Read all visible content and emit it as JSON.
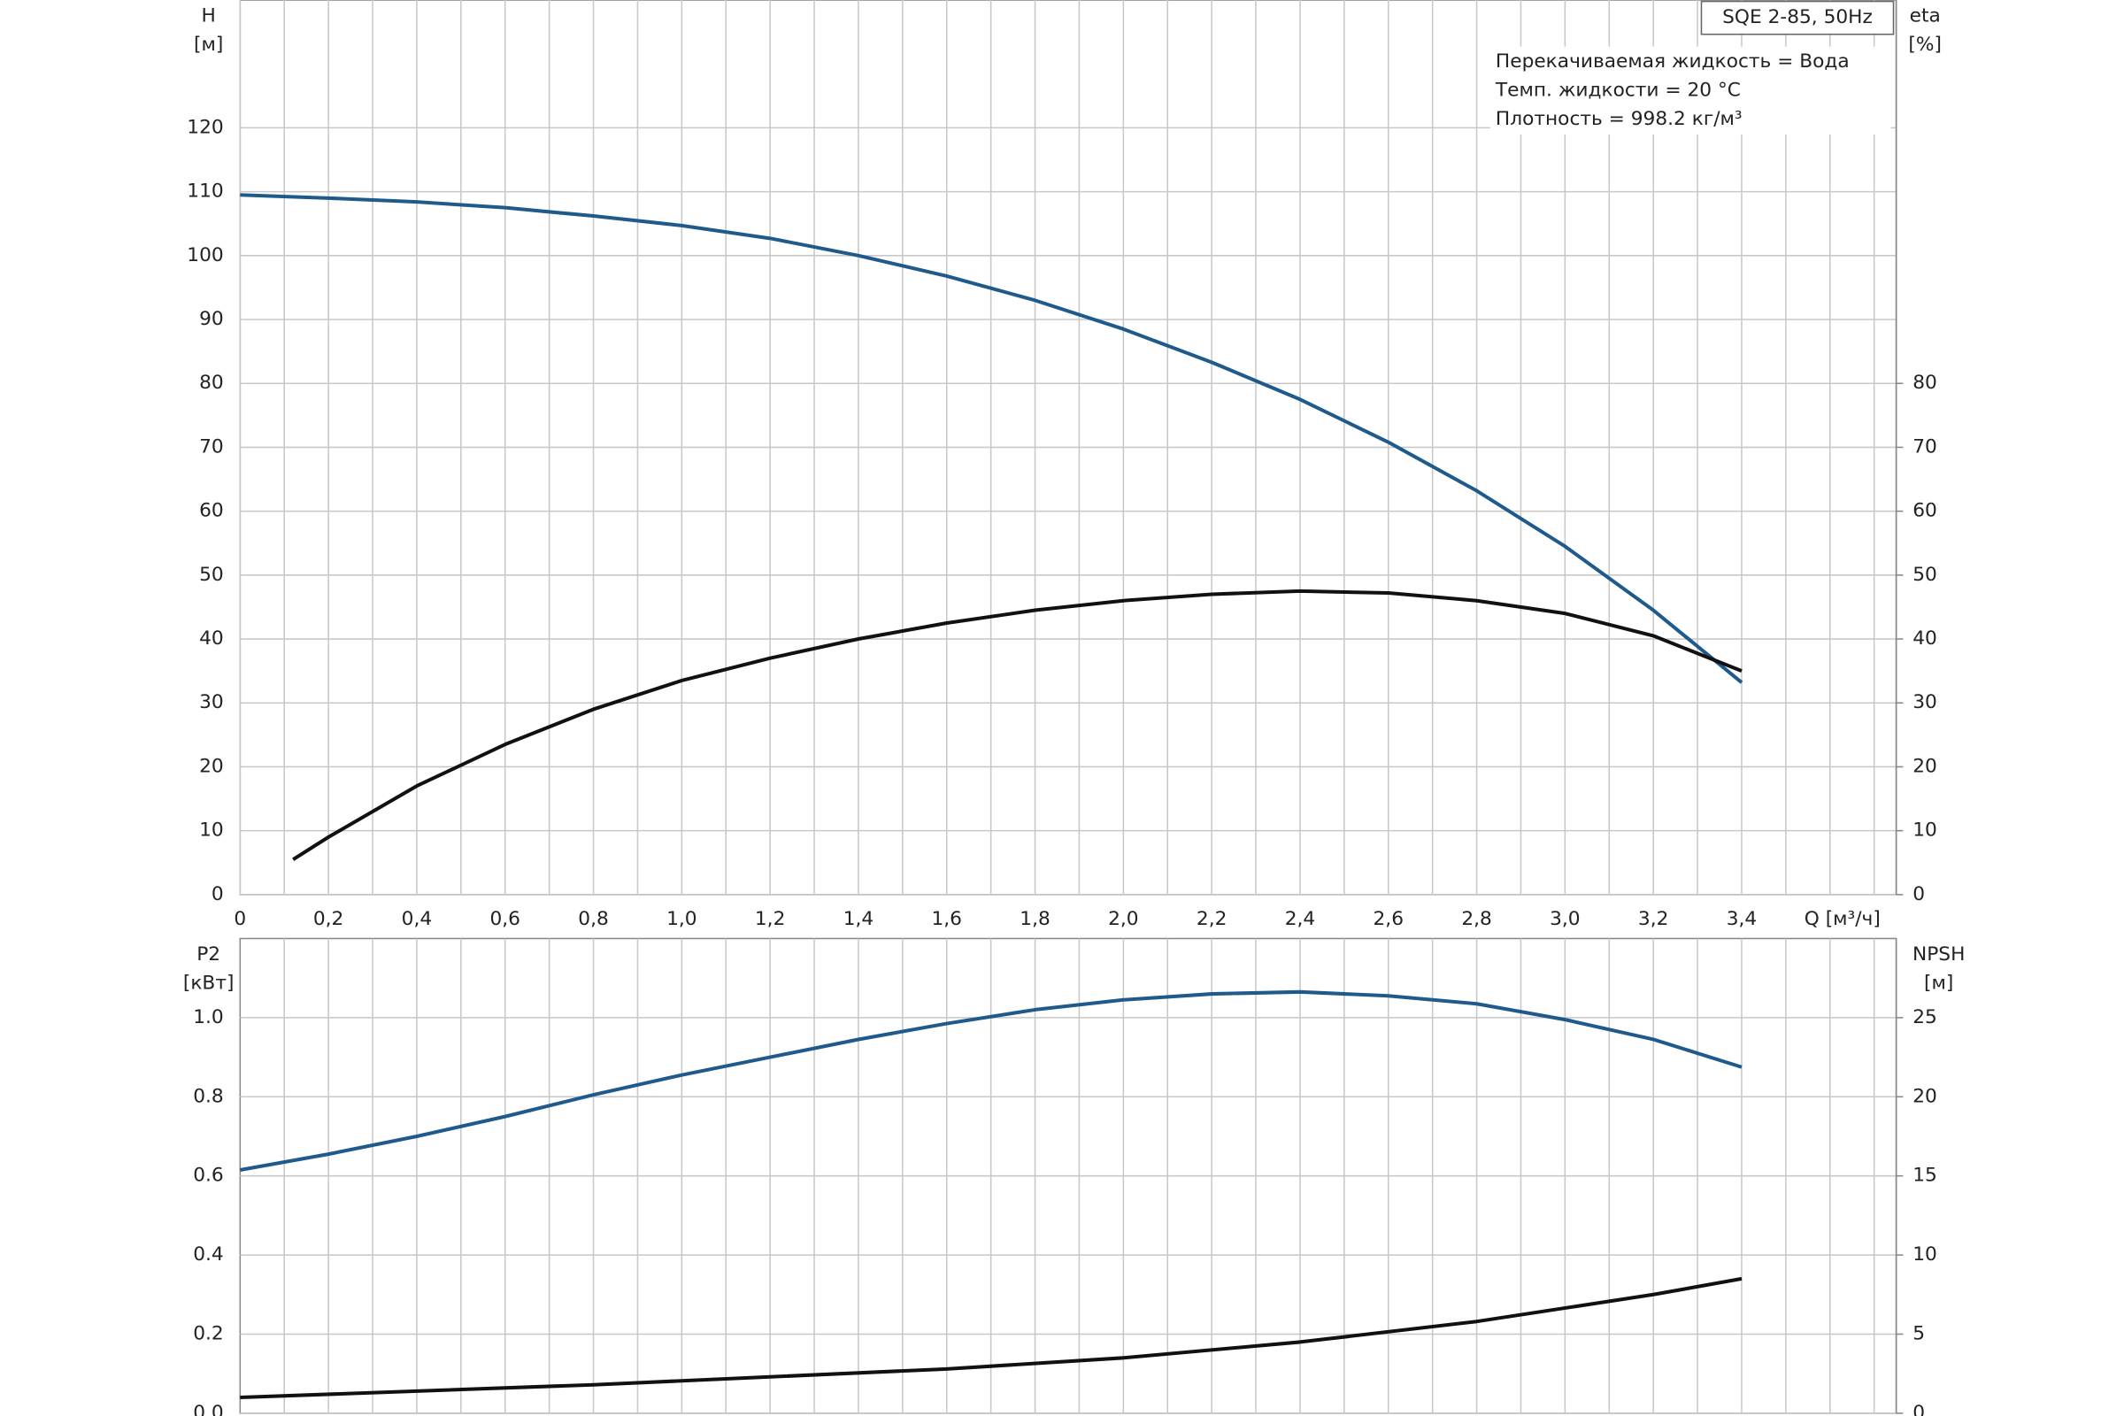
{
  "chart_data": [
    {
      "type": "line",
      "title": "SQE 2-85, 50Hz",
      "annotations": [
        "Перекачиваемая жидкость = Вода",
        "Темп. жидкости = 20 °C",
        "Плотность = 998.2 кг/м³"
      ],
      "ylabel": "H",
      "ylabel_unit": "[м]",
      "y2label": "eta",
      "y2label_unit": "[%]",
      "xlabel": "Q [м³/ч]",
      "xlim": [
        0,
        3.75
      ],
      "ylim": [
        0,
        140
      ],
      "y2lim": [
        0,
        140
      ],
      "xticks": [
        0,
        {
          "value": 0.2,
          "label": "0,2"
        },
        {
          "value": 0.4,
          "label": "0,4"
        },
        {
          "value": 0.6,
          "label": "0,6"
        },
        {
          "value": 0.8,
          "label": "0,8"
        },
        {
          "value": 1,
          "label": "1,0"
        },
        {
          "value": 1.2,
          "label": "1,2"
        },
        {
          "value": 1.4,
          "label": "1,4"
        },
        {
          "value": 1.6,
          "label": "1,6"
        },
        {
          "value": 1.8,
          "label": "1,8"
        },
        {
          "value": 2,
          "label": "2,0"
        },
        {
          "value": 2.2,
          "label": "2,2"
        },
        {
          "value": 2.4,
          "label": "2,4"
        },
        {
          "value": 2.6,
          "label": "2,6"
        },
        {
          "value": 2.8,
          "label": "2,8"
        },
        {
          "value": 3,
          "label": "3,0"
        },
        {
          "value": 3.2,
          "label": "3,2"
        },
        {
          "value": 3.4,
          "label": "3,4"
        }
      ],
      "xgrid_minor": [
        0.1,
        0.3,
        0.5,
        0.7,
        0.9,
        1.1,
        1.3,
        1.5,
        1.7,
        1.9,
        2.1,
        2.3,
        2.5,
        2.7,
        2.9,
        3.1,
        3.3,
        3.5,
        3.6,
        3.7
      ],
      "yticks": [
        0,
        10,
        20,
        30,
        40,
        50,
        60,
        70,
        80,
        90,
        100,
        110,
        120
      ],
      "y2ticks": [
        0,
        10,
        20,
        30,
        40,
        50,
        60,
        70,
        80
      ],
      "grid": true,
      "series": [
        {
          "color": "#1f5a8c",
          "x": [
            0,
            0.2,
            0.4,
            0.6,
            0.8,
            1.0,
            1.2,
            1.4,
            1.6,
            1.8,
            2.0,
            2.2,
            2.4,
            2.6,
            2.8,
            3.0,
            3.2,
            3.4
          ],
          "values": [
            109.5,
            109,
            108.4,
            107.5,
            106.2,
            104.7,
            102.7,
            100,
            96.8,
            93,
            88.5,
            83.3,
            77.5,
            70.8,
            63.2,
            54.5,
            44.5,
            33.2
          ]
        },
        {
          "color": "#111111",
          "axis": "y2",
          "x": [
            0.12,
            0.2,
            0.4,
            0.6,
            0.8,
            1.0,
            1.2,
            1.4,
            1.6,
            1.8,
            2.0,
            2.2,
            2.4,
            2.6,
            2.8,
            3.0,
            3.2,
            3.4
          ],
          "values": [
            5.5,
            9,
            17,
            23.5,
            29,
            33.5,
            37,
            40,
            42.5,
            44.5,
            46,
            47,
            47.5,
            47.2,
            46,
            44,
            40.5,
            35
          ]
        }
      ]
    },
    {
      "type": "line",
      "ylabel": "P2",
      "ylabel_unit": "[кВт]",
      "y2label": "NPSH",
      "y2label_unit": "[м]",
      "xlim": [
        0,
        3.75
      ],
      "ylim": [
        0,
        1.2
      ],
      "y2lim": [
        0,
        30
      ],
      "xgrid": [
        0.1,
        0.2,
        0.3,
        0.4,
        0.5,
        0.6,
        0.7,
        0.8,
        0.9,
        1.0,
        1.1,
        1.2,
        1.3,
        1.4,
        1.5,
        1.6,
        1.7,
        1.8,
        1.9,
        2.0,
        2.1,
        2.2,
        2.3,
        2.4,
        2.5,
        2.6,
        2.7,
        2.8,
        2.9,
        3.0,
        3.1,
        3.2,
        3.3,
        3.4,
        3.5,
        3.6,
        3.7
      ],
      "yticks": [
        {
          "value": 0,
          "label": "0.0"
        },
        0.2,
        0.4,
        0.6,
        0.8,
        {
          "value": 1,
          "label": "1.0"
        }
      ],
      "y2ticks": [
        0,
        5,
        10,
        15,
        20,
        25
      ],
      "grid": true,
      "series": [
        {
          "color": "#1f5a8c",
          "x": [
            0,
            0.2,
            0.4,
            0.6,
            0.8,
            1.0,
            1.2,
            1.4,
            1.6,
            1.8,
            2.0,
            2.2,
            2.4,
            2.6,
            2.8,
            3.0,
            3.2,
            3.4
          ],
          "values": [
            0.615,
            0.655,
            0.7,
            0.75,
            0.805,
            0.855,
            0.9,
            0.945,
            0.985,
            1.02,
            1.045,
            1.06,
            1.065,
            1.055,
            1.035,
            0.995,
            0.945,
            0.875
          ]
        },
        {
          "color": "#111111",
          "axis": "y2",
          "x": [
            0,
            0.4,
            0.8,
            1.2,
            1.6,
            2.0,
            2.4,
            2.8,
            3.2,
            3.4
          ],
          "values": [
            1.0,
            1.4,
            1.8,
            2.3,
            2.8,
            3.5,
            4.5,
            5.8,
            7.5,
            8.5
          ]
        }
      ]
    }
  ]
}
